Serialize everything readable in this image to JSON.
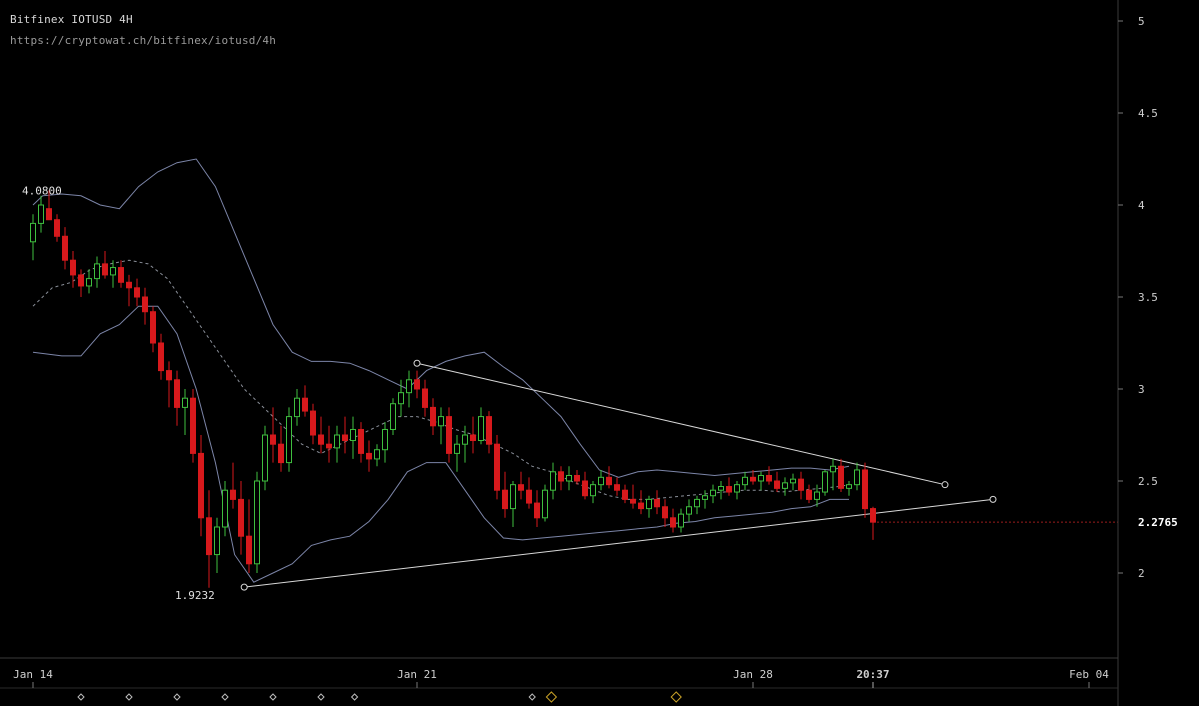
{
  "header": {
    "title": "Bitfinex IOTUSD 4H",
    "url": "https://cryptowat.ch/bitfinex/iotusd/4h"
  },
  "colors": {
    "background": "#000000",
    "up_candle": "#3fbf3f",
    "down_candle": "#d7191c",
    "band": "#7c85a8",
    "ma": "#8a8f99",
    "trendline": "#d9d9d9",
    "price_line": "#9b1c1c",
    "marker": "#c9a227"
  },
  "chart_data": {
    "type": "candlestick",
    "title": "Bitfinex IOTUSD 4H",
    "y_ticks": [
      "5",
      "4.5",
      "4",
      "3.5",
      "3",
      "2.5",
      "2"
    ],
    "y_range": [
      1.5,
      5.06
    ],
    "x_ticks": [
      "Jan 14",
      "Jan 21",
      "Jan 28",
      "Feb 04"
    ],
    "x_range_days": [
      13.4,
      21.4,
      28.4,
      35.4
    ],
    "current_price": "2.2765",
    "current_time": "20:37",
    "annotations": [
      {
        "label": "4.0800",
        "value": 4.08
      },
      {
        "label": "1.9232",
        "value": 1.9232
      }
    ],
    "candles": [
      [
        3.8,
        3.95,
        3.7,
        3.9
      ],
      [
        3.9,
        4.05,
        3.85,
        4.0
      ],
      [
        3.98,
        4.08,
        3.92,
        3.92
      ],
      [
        3.92,
        3.95,
        3.8,
        3.83
      ],
      [
        3.83,
        3.88,
        3.65,
        3.7
      ],
      [
        3.7,
        3.75,
        3.55,
        3.62
      ],
      [
        3.62,
        3.65,
        3.5,
        3.56
      ],
      [
        3.56,
        3.65,
        3.52,
        3.6
      ],
      [
        3.6,
        3.72,
        3.55,
        3.68
      ],
      [
        3.68,
        3.75,
        3.6,
        3.62
      ],
      [
        3.62,
        3.7,
        3.55,
        3.66
      ],
      [
        3.66,
        3.7,
        3.55,
        3.58
      ],
      [
        3.58,
        3.62,
        3.45,
        3.55
      ],
      [
        3.55,
        3.6,
        3.45,
        3.5
      ],
      [
        3.5,
        3.55,
        3.35,
        3.42
      ],
      [
        3.42,
        3.45,
        3.2,
        3.25
      ],
      [
        3.25,
        3.3,
        3.05,
        3.1
      ],
      [
        3.1,
        3.15,
        2.9,
        3.05
      ],
      [
        3.05,
        3.1,
        2.8,
        2.9
      ],
      [
        2.9,
        3.0,
        2.75,
        2.95
      ],
      [
        2.95,
        3.0,
        2.6,
        2.65
      ],
      [
        2.65,
        2.75,
        2.2,
        2.3
      ],
      [
        2.3,
        2.45,
        1.92,
        2.1
      ],
      [
        2.1,
        2.3,
        2.0,
        2.25
      ],
      [
        2.25,
        2.5,
        2.2,
        2.45
      ],
      [
        2.45,
        2.6,
        2.35,
        2.4
      ],
      [
        2.4,
        2.5,
        2.1,
        2.2
      ],
      [
        2.2,
        2.4,
        2.0,
        2.05
      ],
      [
        2.05,
        2.55,
        2.0,
        2.5
      ],
      [
        2.5,
        2.8,
        2.45,
        2.75
      ],
      [
        2.75,
        2.9,
        2.6,
        2.7
      ],
      [
        2.7,
        2.8,
        2.55,
        2.6
      ],
      [
        2.6,
        2.9,
        2.55,
        2.85
      ],
      [
        2.85,
        3.0,
        2.8,
        2.95
      ],
      [
        2.95,
        3.02,
        2.85,
        2.88
      ],
      [
        2.88,
        2.92,
        2.7,
        2.75
      ],
      [
        2.75,
        2.85,
        2.65,
        2.7
      ],
      [
        2.7,
        2.8,
        2.6,
        2.68
      ],
      [
        2.68,
        2.8,
        2.6,
        2.75
      ],
      [
        2.75,
        2.85,
        2.65,
        2.72
      ],
      [
        2.72,
        2.85,
        2.62,
        2.78
      ],
      [
        2.78,
        2.82,
        2.6,
        2.65
      ],
      [
        2.65,
        2.72,
        2.55,
        2.62
      ],
      [
        2.62,
        2.7,
        2.58,
        2.67
      ],
      [
        2.67,
        2.82,
        2.6,
        2.78
      ],
      [
        2.78,
        2.95,
        2.75,
        2.92
      ],
      [
        2.92,
        3.05,
        2.85,
        2.98
      ],
      [
        2.98,
        3.1,
        2.9,
        3.05
      ],
      [
        3.05,
        3.1,
        2.95,
        3.0
      ],
      [
        3.0,
        3.05,
        2.85,
        2.9
      ],
      [
        2.9,
        2.95,
        2.75,
        2.8
      ],
      [
        2.8,
        2.9,
        2.7,
        2.85
      ],
      [
        2.85,
        2.9,
        2.6,
        2.65
      ],
      [
        2.65,
        2.75,
        2.55,
        2.7
      ],
      [
        2.7,
        2.8,
        2.6,
        2.75
      ],
      [
        2.75,
        2.85,
        2.65,
        2.72
      ],
      [
        2.72,
        2.9,
        2.7,
        2.85
      ],
      [
        2.85,
        2.88,
        2.65,
        2.7
      ],
      [
        2.7,
        2.75,
        2.4,
        2.45
      ],
      [
        2.45,
        2.55,
        2.3,
        2.35
      ],
      [
        2.35,
        2.5,
        2.25,
        2.48
      ],
      [
        2.48,
        2.55,
        2.4,
        2.45
      ],
      [
        2.45,
        2.52,
        2.35,
        2.38
      ],
      [
        2.38,
        2.45,
        2.25,
        2.3
      ],
      [
        2.3,
        2.48,
        2.28,
        2.45
      ],
      [
        2.45,
        2.6,
        2.4,
        2.55
      ],
      [
        2.55,
        2.58,
        2.45,
        2.5
      ],
      [
        2.5,
        2.58,
        2.45,
        2.53
      ],
      [
        2.53,
        2.56,
        2.48,
        2.5
      ],
      [
        2.5,
        2.55,
        2.4,
        2.42
      ],
      [
        2.42,
        2.5,
        2.38,
        2.48
      ],
      [
        2.48,
        2.56,
        2.45,
        2.52
      ],
      [
        2.52,
        2.58,
        2.46,
        2.48
      ],
      [
        2.48,
        2.52,
        2.42,
        2.45
      ],
      [
        2.45,
        2.48,
        2.38,
        2.4
      ],
      [
        2.4,
        2.48,
        2.35,
        2.38
      ],
      [
        2.38,
        2.45,
        2.32,
        2.35
      ],
      [
        2.35,
        2.42,
        2.3,
        2.4
      ],
      [
        2.4,
        2.45,
        2.32,
        2.36
      ],
      [
        2.36,
        2.4,
        2.25,
        2.3
      ],
      [
        2.3,
        2.35,
        2.22,
        2.25
      ],
      [
        2.25,
        2.35,
        2.22,
        2.32
      ],
      [
        2.32,
        2.4,
        2.28,
        2.36
      ],
      [
        2.36,
        2.42,
        2.32,
        2.4
      ],
      [
        2.4,
        2.45,
        2.35,
        2.42
      ],
      [
        2.42,
        2.48,
        2.38,
        2.45
      ],
      [
        2.45,
        2.5,
        2.4,
        2.47
      ],
      [
        2.47,
        2.52,
        2.42,
        2.44
      ],
      [
        2.44,
        2.5,
        2.4,
        2.48
      ],
      [
        2.48,
        2.55,
        2.45,
        2.52
      ],
      [
        2.52,
        2.56,
        2.48,
        2.5
      ],
      [
        2.5,
        2.55,
        2.45,
        2.53
      ],
      [
        2.53,
        2.58,
        2.48,
        2.5
      ],
      [
        2.5,
        2.55,
        2.44,
        2.46
      ],
      [
        2.46,
        2.52,
        2.42,
        2.49
      ],
      [
        2.49,
        2.54,
        2.45,
        2.51
      ],
      [
        2.51,
        2.55,
        2.4,
        2.45
      ],
      [
        2.45,
        2.48,
        2.38,
        2.4
      ],
      [
        2.4,
        2.48,
        2.36,
        2.44
      ],
      [
        2.44,
        2.56,
        2.42,
        2.55
      ],
      [
        2.55,
        2.62,
        2.45,
        2.58
      ],
      [
        2.58,
        2.62,
        2.44,
        2.46
      ],
      [
        2.46,
        2.5,
        2.42,
        2.48
      ],
      [
        2.48,
        2.6,
        2.45,
        2.56
      ],
      [
        2.56,
        2.6,
        2.3,
        2.35
      ],
      [
        2.35,
        2.36,
        2.18,
        2.2765
      ]
    ],
    "upper_band": [
      [
        13.4,
        4.0
      ],
      [
        13.6,
        4.05
      ],
      [
        14.0,
        4.06
      ],
      [
        14.4,
        4.05
      ],
      [
        14.8,
        4.0
      ],
      [
        15.2,
        3.98
      ],
      [
        15.6,
        4.1
      ],
      [
        16.0,
        4.18
      ],
      [
        16.4,
        4.23
      ],
      [
        16.8,
        4.25
      ],
      [
        17.2,
        4.1
      ],
      [
        17.6,
        3.85
      ],
      [
        18.0,
        3.6
      ],
      [
        18.4,
        3.35
      ],
      [
        18.8,
        3.2
      ],
      [
        19.2,
        3.15
      ],
      [
        19.6,
        3.15
      ],
      [
        20.0,
        3.14
      ],
      [
        20.4,
        3.1
      ],
      [
        20.8,
        3.05
      ],
      [
        21.2,
        3.0
      ],
      [
        21.6,
        3.1
      ],
      [
        22.0,
        3.15
      ],
      [
        22.4,
        3.18
      ],
      [
        22.8,
        3.2
      ],
      [
        23.2,
        3.12
      ],
      [
        23.6,
        3.05
      ],
      [
        24.0,
        2.95
      ],
      [
        24.4,
        2.85
      ],
      [
        24.8,
        2.7
      ],
      [
        25.2,
        2.56
      ],
      [
        25.6,
        2.52
      ],
      [
        26.0,
        2.55
      ],
      [
        26.4,
        2.56
      ],
      [
        26.8,
        2.55
      ],
      [
        27.2,
        2.54
      ],
      [
        27.6,
        2.53
      ],
      [
        28.0,
        2.54
      ],
      [
        28.4,
        2.55
      ],
      [
        28.8,
        2.56
      ],
      [
        29.2,
        2.57
      ],
      [
        29.6,
        2.57
      ],
      [
        30.0,
        2.56
      ],
      [
        30.4,
        2.58
      ]
    ],
    "lower_band": [
      [
        13.4,
        3.2
      ],
      [
        14.0,
        3.18
      ],
      [
        14.4,
        3.18
      ],
      [
        14.8,
        3.3
      ],
      [
        15.2,
        3.35
      ],
      [
        15.6,
        3.45
      ],
      [
        16.0,
        3.45
      ],
      [
        16.4,
        3.3
      ],
      [
        16.8,
        3.0
      ],
      [
        17.2,
        2.6
      ],
      [
        17.6,
        2.1
      ],
      [
        18.0,
        1.95
      ],
      [
        18.4,
        2.0
      ],
      [
        18.8,
        2.05
      ],
      [
        19.2,
        2.15
      ],
      [
        19.6,
        2.18
      ],
      [
        20.0,
        2.2
      ],
      [
        20.4,
        2.28
      ],
      [
        20.8,
        2.4
      ],
      [
        21.2,
        2.55
      ],
      [
        21.6,
        2.6
      ],
      [
        22.0,
        2.6
      ],
      [
        22.4,
        2.45
      ],
      [
        22.8,
        2.3
      ],
      [
        23.2,
        2.19
      ],
      [
        23.6,
        2.18
      ],
      [
        24.0,
        2.19
      ],
      [
        24.4,
        2.2
      ],
      [
        24.8,
        2.21
      ],
      [
        25.2,
        2.22
      ],
      [
        25.6,
        2.23
      ],
      [
        26.0,
        2.24
      ],
      [
        26.4,
        2.25
      ],
      [
        26.8,
        2.27
      ],
      [
        27.2,
        2.28
      ],
      [
        27.6,
        2.3
      ],
      [
        28.0,
        2.31
      ],
      [
        28.4,
        2.32
      ],
      [
        28.8,
        2.33
      ],
      [
        29.2,
        2.35
      ],
      [
        29.6,
        2.36
      ],
      [
        30.0,
        2.4
      ],
      [
        30.4,
        2.4
      ]
    ],
    "middle_band": [
      [
        13.4,
        3.45
      ],
      [
        13.8,
        3.55
      ],
      [
        14.2,
        3.58
      ],
      [
        14.6,
        3.65
      ],
      [
        15.0,
        3.68
      ],
      [
        15.4,
        3.7
      ],
      [
        15.8,
        3.68
      ],
      [
        16.2,
        3.6
      ],
      [
        16.6,
        3.45
      ],
      [
        17.0,
        3.3
      ],
      [
        17.4,
        3.15
      ],
      [
        17.8,
        3.0
      ],
      [
        18.2,
        2.9
      ],
      [
        18.6,
        2.8
      ],
      [
        19.0,
        2.7
      ],
      [
        19.4,
        2.65
      ],
      [
        19.8,
        2.7
      ],
      [
        20.2,
        2.75
      ],
      [
        20.6,
        2.8
      ],
      [
        21.0,
        2.85
      ],
      [
        21.4,
        2.85
      ],
      [
        21.8,
        2.82
      ],
      [
        22.2,
        2.78
      ],
      [
        22.6,
        2.75
      ],
      [
        23.0,
        2.7
      ],
      [
        23.4,
        2.65
      ],
      [
        23.8,
        2.58
      ],
      [
        24.2,
        2.55
      ],
      [
        24.6,
        2.5
      ],
      [
        25.0,
        2.46
      ],
      [
        25.4,
        2.42
      ],
      [
        25.8,
        2.4
      ],
      [
        26.2,
        2.4
      ],
      [
        26.6,
        2.41
      ],
      [
        27.0,
        2.42
      ],
      [
        27.4,
        2.43
      ],
      [
        27.8,
        2.44
      ],
      [
        28.2,
        2.45
      ],
      [
        28.6,
        2.45
      ],
      [
        29.0,
        2.44
      ],
      [
        29.4,
        2.45
      ],
      [
        29.8,
        2.46
      ],
      [
        30.2,
        2.47
      ],
      [
        30.4,
        2.48
      ]
    ],
    "trendlines": [
      {
        "x1": 21.4,
        "y1": 3.14,
        "x2": 32.4,
        "y2": 2.48
      },
      {
        "x1": 17.8,
        "y1": 1.9232,
        "x2": 33.4,
        "y2": 2.4
      }
    ],
    "event_markers_days": [
      14.4,
      15.4,
      16.4,
      17.4,
      18.4,
      19.4,
      20.1,
      23.8,
      24.2,
      26.8
    ]
  }
}
